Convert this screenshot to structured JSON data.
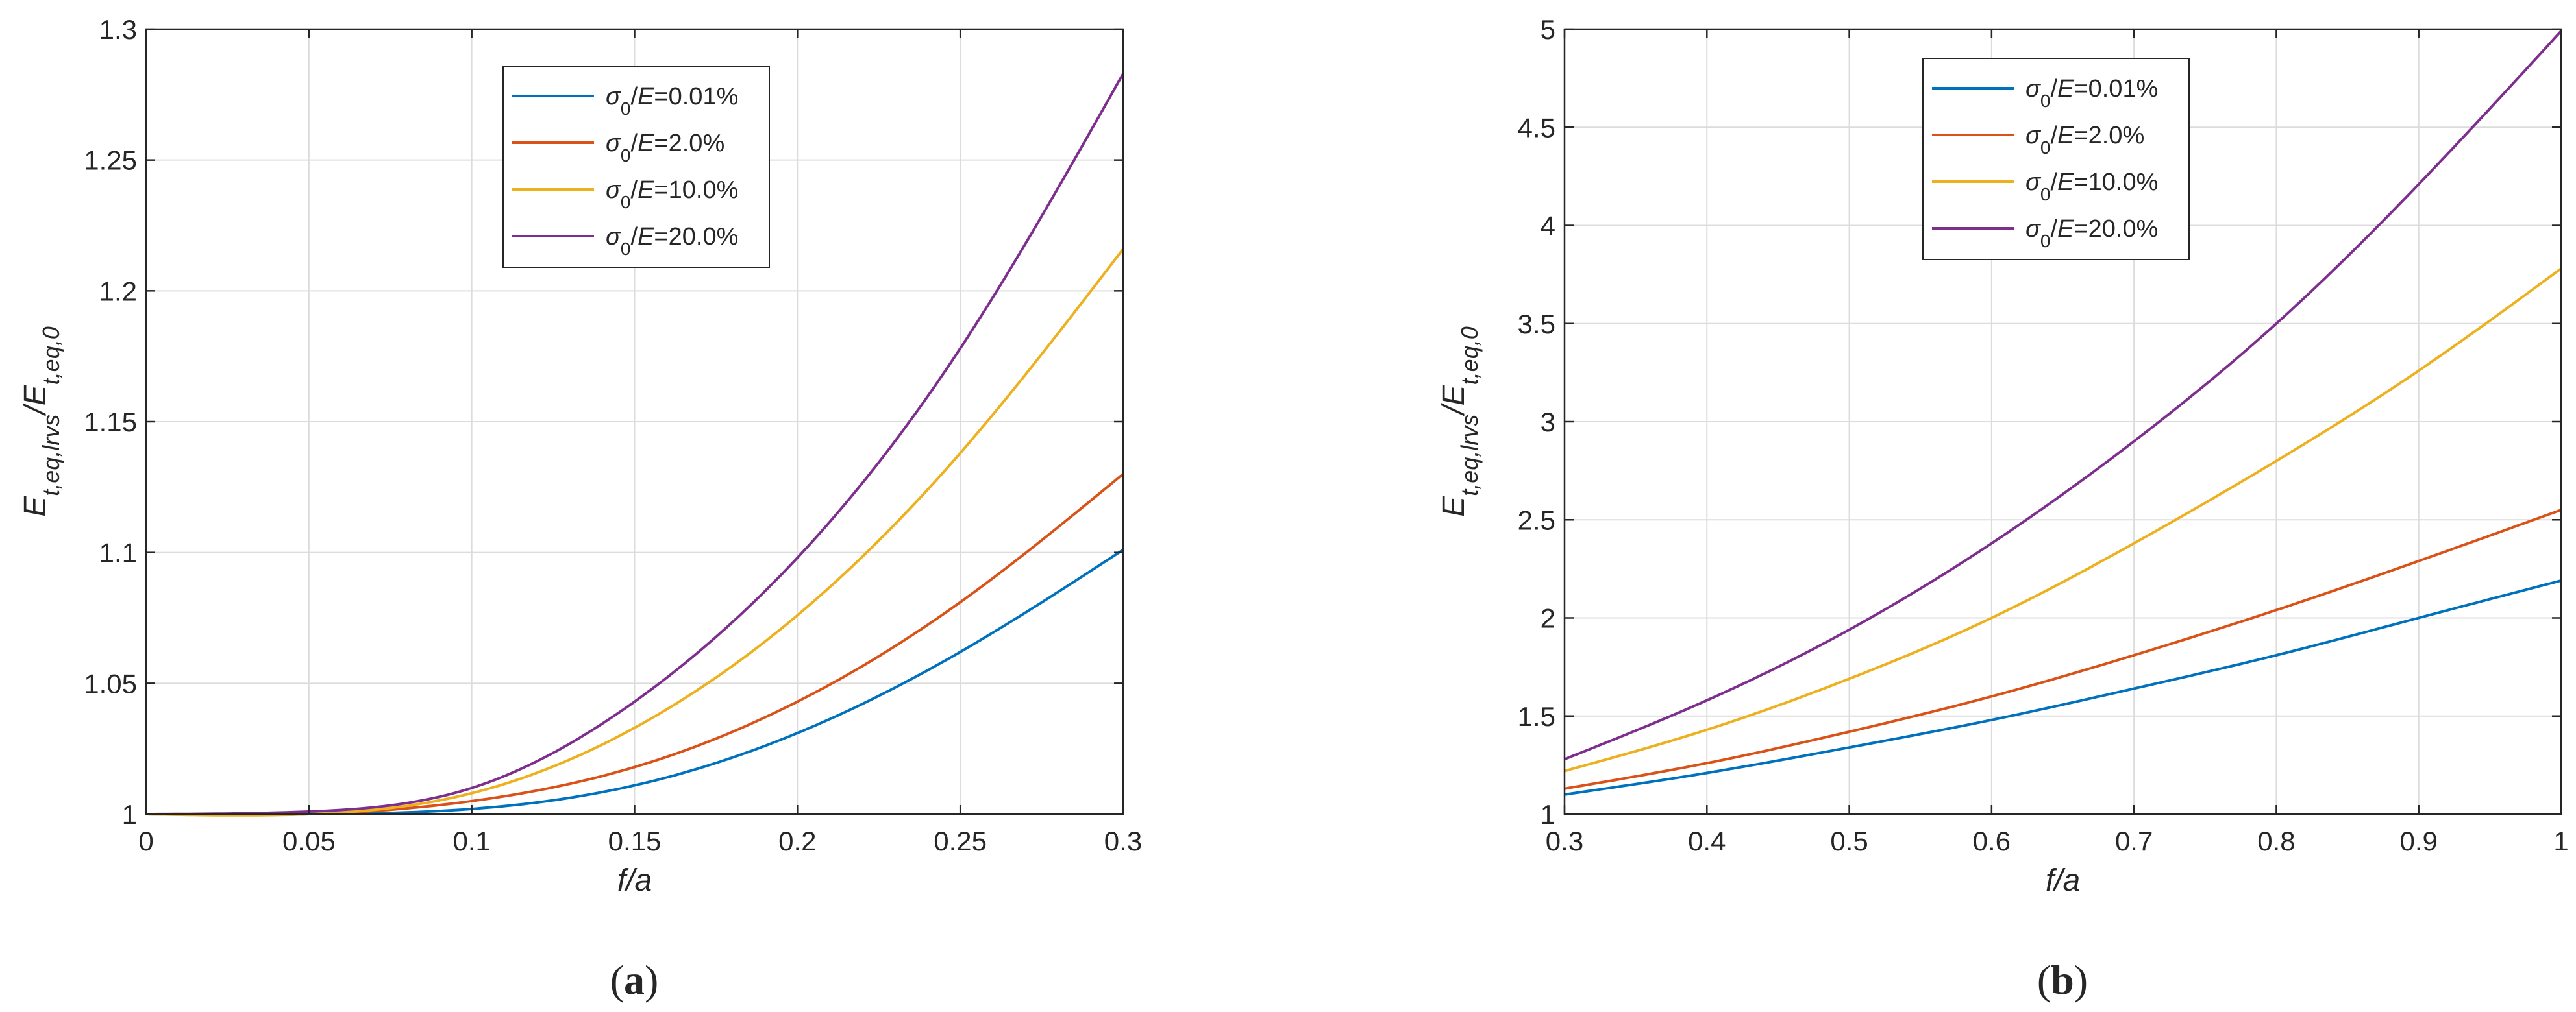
{
  "chart_data": [
    {
      "type": "line",
      "caption": "a",
      "xlabel": "f/a",
      "ylabel": "E_t,eq,lrvs/E_t,eq,0",
      "xlim": [
        0,
        0.3
      ],
      "ylim": [
        1,
        1.3
      ],
      "xticks": [
        0,
        0.05,
        0.1,
        0.15,
        0.2,
        0.25,
        0.3
      ],
      "yticks": [
        1,
        1.05,
        1.1,
        1.15,
        1.2,
        1.25,
        1.3
      ],
      "grid": true,
      "legend_position": "top-center",
      "x": [
        0,
        0.05,
        0.1,
        0.15,
        0.2,
        0.25,
        0.3
      ],
      "series": [
        {
          "name": "σ0/E=0.01%",
          "color": "#0072BD",
          "values": [
            1.0,
            1.0,
            1.002,
            1.011,
            1.031,
            1.062,
            1.101
          ]
        },
        {
          "name": "σ0/E=2.0%",
          "color": "#D95319",
          "values": [
            1.0,
            1.0,
            1.005,
            1.018,
            1.043,
            1.081,
            1.13
          ]
        },
        {
          "name": "σ0/E=10.0%",
          "color": "#EDB120",
          "values": [
            1.0,
            1.0,
            1.008,
            1.033,
            1.076,
            1.138,
            1.216
          ]
        },
        {
          "name": "σ0/E=20.0%",
          "color": "#7E2F8E",
          "values": [
            1.0,
            1.001,
            1.01,
            1.043,
            1.098,
            1.178,
            1.283
          ]
        }
      ]
    },
    {
      "type": "line",
      "caption": "b",
      "xlabel": "f/a",
      "ylabel": "E_t,eq,lrvs/E_t,eq,0",
      "xlim": [
        0.3,
        1
      ],
      "ylim": [
        1,
        5
      ],
      "xticks": [
        0.3,
        0.4,
        0.5,
        0.6,
        0.7,
        0.8,
        0.9,
        1
      ],
      "yticks": [
        1,
        1.5,
        2,
        2.5,
        3,
        3.5,
        4,
        4.5,
        5
      ],
      "grid": true,
      "legend_position": "top-left",
      "x": [
        0.3,
        0.4,
        0.5,
        0.6,
        0.7,
        0.8,
        0.9,
        1.0
      ],
      "series": [
        {
          "name": "σ0/E=0.01%",
          "color": "#0072BD",
          "values": [
            1.1,
            1.21,
            1.34,
            1.48,
            1.64,
            1.81,
            2.0,
            2.19
          ]
        },
        {
          "name": "σ0/E=2.0%",
          "color": "#D95319",
          "values": [
            1.13,
            1.26,
            1.42,
            1.6,
            1.81,
            2.04,
            2.29,
            2.55
          ]
        },
        {
          "name": "σ0/E=10.0%",
          "color": "#EDB120",
          "values": [
            1.22,
            1.43,
            1.69,
            2.0,
            2.38,
            2.8,
            3.26,
            3.78
          ]
        },
        {
          "name": "σ0/E=20.0%",
          "color": "#7E2F8E",
          "values": [
            1.28,
            1.58,
            1.94,
            2.38,
            2.9,
            3.5,
            4.21,
            4.99
          ]
        }
      ]
    }
  ]
}
